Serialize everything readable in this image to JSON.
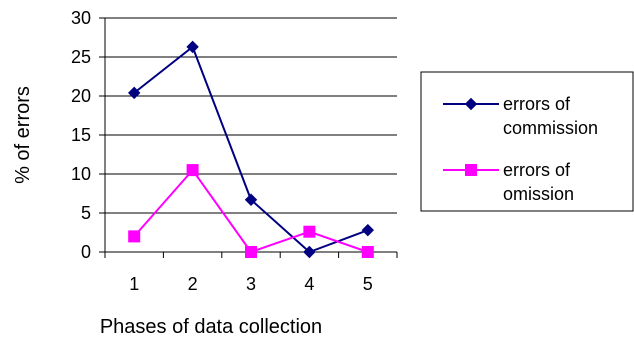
{
  "chart_data": {
    "type": "line",
    "title": "",
    "xlabel": "Phases of data collection",
    "ylabel": "% of errors",
    "categories": [
      "1",
      "2",
      "3",
      "4",
      "5"
    ],
    "ylim": [
      0,
      30
    ],
    "yticks": [
      "0",
      "5",
      "10",
      "15",
      "20",
      "25",
      "30"
    ],
    "grid": "horizontal",
    "legend_position": "right",
    "series": [
      {
        "name": "errors of commission",
        "legend_lines": [
          "errors of",
          "commission"
        ],
        "color": "#000080",
        "marker": "diamond",
        "values": [
          20.4,
          26.3,
          6.7,
          0,
          2.8
        ]
      },
      {
        "name": "errors of omission",
        "legend_lines": [
          "errors of",
          "omission"
        ],
        "color": "#FF00FF",
        "marker": "square",
        "values": [
          2.0,
          10.5,
          0,
          2.6,
          0
        ]
      }
    ]
  }
}
